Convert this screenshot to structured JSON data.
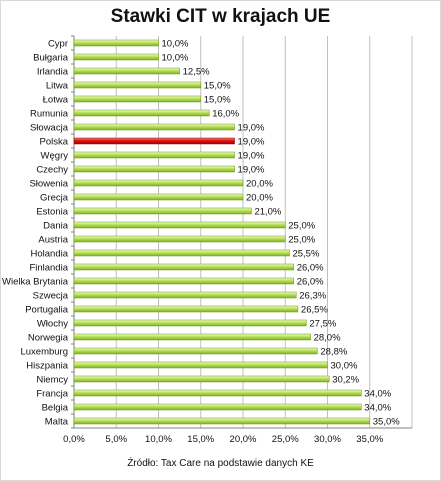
{
  "chart_data": {
    "type": "bar",
    "orientation": "horizontal",
    "title": "Stawki CIT w krajach UE",
    "source": "Źródło: Tax Care na podstawie danych KE",
    "categories": [
      "Cypr",
      "Bułgaria",
      "Irlandia",
      "Litwa",
      "Łotwa",
      "Rumunia",
      "Słowacja",
      "Polska",
      "Węgry",
      "Czechy",
      "Słowenia",
      "Grecja",
      "Estonia",
      "Dania",
      "Austria",
      "Holandia",
      "Finlandia",
      "Wielka Brytania",
      "Szwecja",
      "Portugalia",
      "Włochy",
      "Norwegia",
      "Luxemburg",
      "Hiszpania",
      "Niemcy",
      "Francja",
      "Belgia",
      "Malta"
    ],
    "values": [
      10.0,
      10.0,
      12.5,
      15.0,
      15.0,
      16.0,
      19.0,
      19.0,
      19.0,
      19.0,
      20.0,
      20.0,
      21.0,
      25.0,
      25.0,
      25.5,
      26.0,
      26.0,
      26.3,
      26.5,
      27.5,
      28.0,
      28.8,
      30.0,
      30.2,
      34.0,
      34.0,
      35.0
    ],
    "value_labels": [
      "10,0%",
      "10,0%",
      "12,5%",
      "15,0%",
      "15,0%",
      "16,0%",
      "19,0%",
      "19,0%",
      "19,0%",
      "19,0%",
      "20,0%",
      "20,0%",
      "21,0%",
      "25,0%",
      "25,0%",
      "25,5%",
      "26,0%",
      "26,0%",
      "26,3%",
      "26,5%",
      "27,5%",
      "28,0%",
      "28,8%",
      "30,0%",
      "30,2%",
      "34,0%",
      "34,0%",
      "35,0%"
    ],
    "xlim": [
      0,
      40
    ],
    "xticks": [
      0,
      5,
      10,
      15,
      20,
      25,
      30,
      35
    ],
    "xtick_labels": [
      "0,0%",
      "5,0%",
      "10,0%",
      "15,0%",
      "20,0%",
      "25,0%",
      "30,0%",
      "35,0%"
    ],
    "grid": "vertical",
    "legend": "none",
    "colors": {
      "bar": "#9acd32",
      "bar_light": "#e4f5b0",
      "bar_highlight": "#cc0000",
      "bar_highlight_light": "#ff6666",
      "grid": "#bfbfbf",
      "axis": "#808080"
    },
    "highlight_category": "Polska"
  }
}
